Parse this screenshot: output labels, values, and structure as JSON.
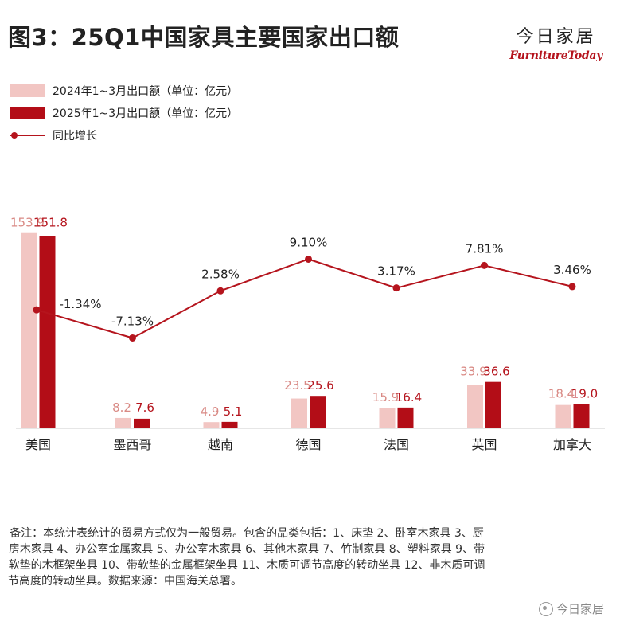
{
  "header": {
    "title": "图3：25Q1中国家具主要国家出口额",
    "brand_cn": "今日家居",
    "brand_en": "FurnitureToday"
  },
  "legend": {
    "series_2024": "2024年1~3月出口额（单位：亿元）",
    "series_2025": "2025年1~3月出口额（单位：亿元）",
    "growth": "同比增长"
  },
  "colors": {
    "bar_2024": "#f2c6c3",
    "bar_2025": "#b30d17",
    "line": "#b5141d",
    "label_2024": "#d98a85",
    "label_2025": "#b5141d"
  },
  "chart_data": {
    "type": "bar",
    "categories": [
      "美国",
      "墨西哥",
      "越南",
      "德国",
      "法国",
      "英国",
      "加拿大"
    ],
    "series": [
      {
        "name": "2024年1~3月出口额（单位：亿元）",
        "values": [
          153.9,
          8.2,
          4.9,
          23.5,
          15.9,
          33.9,
          18.4
        ]
      },
      {
        "name": "2025年1~3月出口额（单位：亿元）",
        "values": [
          151.8,
          7.6,
          5.1,
          25.6,
          16.4,
          36.6,
          19.0
        ]
      }
    ],
    "value_labels_2024": [
      "153.9",
      "8.2",
      "4.9",
      "23.5",
      "15.9",
      "33.9",
      "18.4"
    ],
    "value_labels_2025": [
      "151.8",
      "7.6",
      "5.1",
      "25.6",
      "16.4",
      "36.6",
      "19.0"
    ],
    "growth": {
      "name": "同比增长",
      "values": [
        -1.34,
        -7.13,
        2.58,
        9.1,
        3.17,
        7.81,
        3.46
      ],
      "labels": [
        "-1.34%",
        "-7.13%",
        "2.58%",
        "9.10%",
        "3.17%",
        "7.81%",
        "3.46%"
      ]
    },
    "ylim": [
      0,
      160
    ],
    "growth_ylim": [
      -10,
      10
    ]
  },
  "note": "备注：本统计表统计的贸易方式仅为一般贸易。包含的品类包括：1、床垫 2、卧室木家具 3、厨房木家具 4、办公室金属家具 5、办公室木家具 6、其他木家具 7、竹制家具 8、塑料家具 9、带软垫的木框架坐具 10、带软垫的金属框架坐具 11、木质可调节高度的转动坐具 12、非木质可调节高度的转动坐具。数据来源：中国海关总署。",
  "watermark": "今日家居"
}
